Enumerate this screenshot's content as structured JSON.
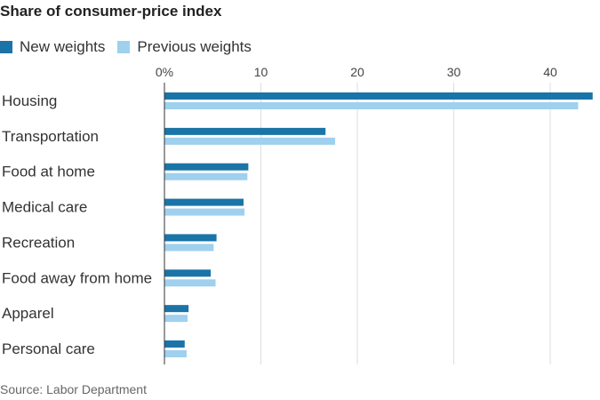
{
  "chart_data": {
    "type": "bar",
    "orientation": "horizontal",
    "title": "Share of consumer-price index",
    "source": "Source: Labor Department",
    "categories": [
      "Housing",
      "Transportation",
      "Food at home",
      "Medical care",
      "Recreation",
      "Food away from home",
      "Apparel",
      "Personal care"
    ],
    "series": [
      {
        "name": "New weights",
        "color": "#1a74a8",
        "values": [
          44.4,
          16.7,
          8.7,
          8.2,
          5.4,
          4.8,
          2.5,
          2.1
        ]
      },
      {
        "name": "Previous weights",
        "color": "#9fd0ee",
        "values": [
          42.9,
          17.7,
          8.6,
          8.3,
          5.1,
          5.3,
          2.4,
          2.3
        ]
      }
    ],
    "x_ticks": [
      0,
      10,
      20,
      30,
      40
    ],
    "x_tick_labels": [
      "0%",
      "10",
      "20",
      "30",
      "40"
    ],
    "xlim": [
      0,
      45
    ],
    "grid": true,
    "legend_position": "top-left"
  }
}
